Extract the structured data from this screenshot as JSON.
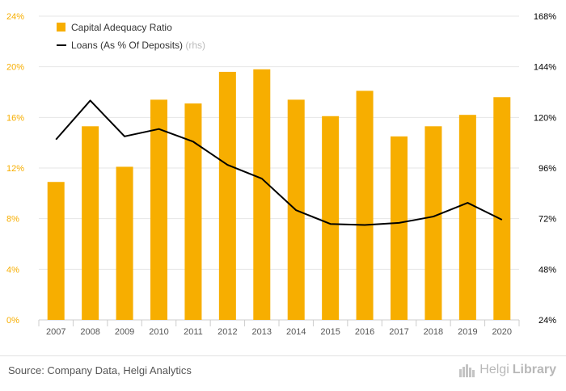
{
  "chart_data": {
    "type": "bar",
    "categories": [
      "2007",
      "2008",
      "2009",
      "2010",
      "2011",
      "2012",
      "2013",
      "2014",
      "2015",
      "2016",
      "2017",
      "2018",
      "2019",
      "2020"
    ],
    "series": [
      {
        "name": "Capital Adequacy Ratio",
        "type": "bar",
        "axis": "left",
        "color": "#f7ae00",
        "values": [
          10.9,
          15.3,
          12.1,
          17.4,
          17.1,
          19.6,
          19.8,
          17.4,
          16.1,
          18.1,
          14.5,
          15.3,
          16.2,
          17.6
        ]
      },
      {
        "name": "Loans (As % Of Deposits)",
        "suffix": "(rhs)",
        "type": "line",
        "axis": "right",
        "color": "#000000",
        "values": [
          109.5,
          128.0,
          111.0,
          114.5,
          108.5,
          97.5,
          91.0,
          76.0,
          69.5,
          69.0,
          70.0,
          73.0,
          79.5,
          71.5
        ]
      }
    ],
    "left_axis": {
      "min": 0,
      "max": 24,
      "ticks": [
        "0%",
        "4%",
        "8%",
        "12%",
        "16%",
        "20%",
        "24%"
      ]
    },
    "right_axis": {
      "min": 24,
      "max": 168,
      "ticks": [
        "24%",
        "48%",
        "72%",
        "96%",
        "120%",
        "144%",
        "168%"
      ]
    },
    "grid": true,
    "legend_position": "top-left",
    "tick_color_left": "#f7ae00",
    "tick_color_right": "#000000"
  },
  "footer": {
    "source": "Source: Company Data, Helgi Analytics",
    "brand_name": "Helgi",
    "brand_suffix": "Library"
  }
}
